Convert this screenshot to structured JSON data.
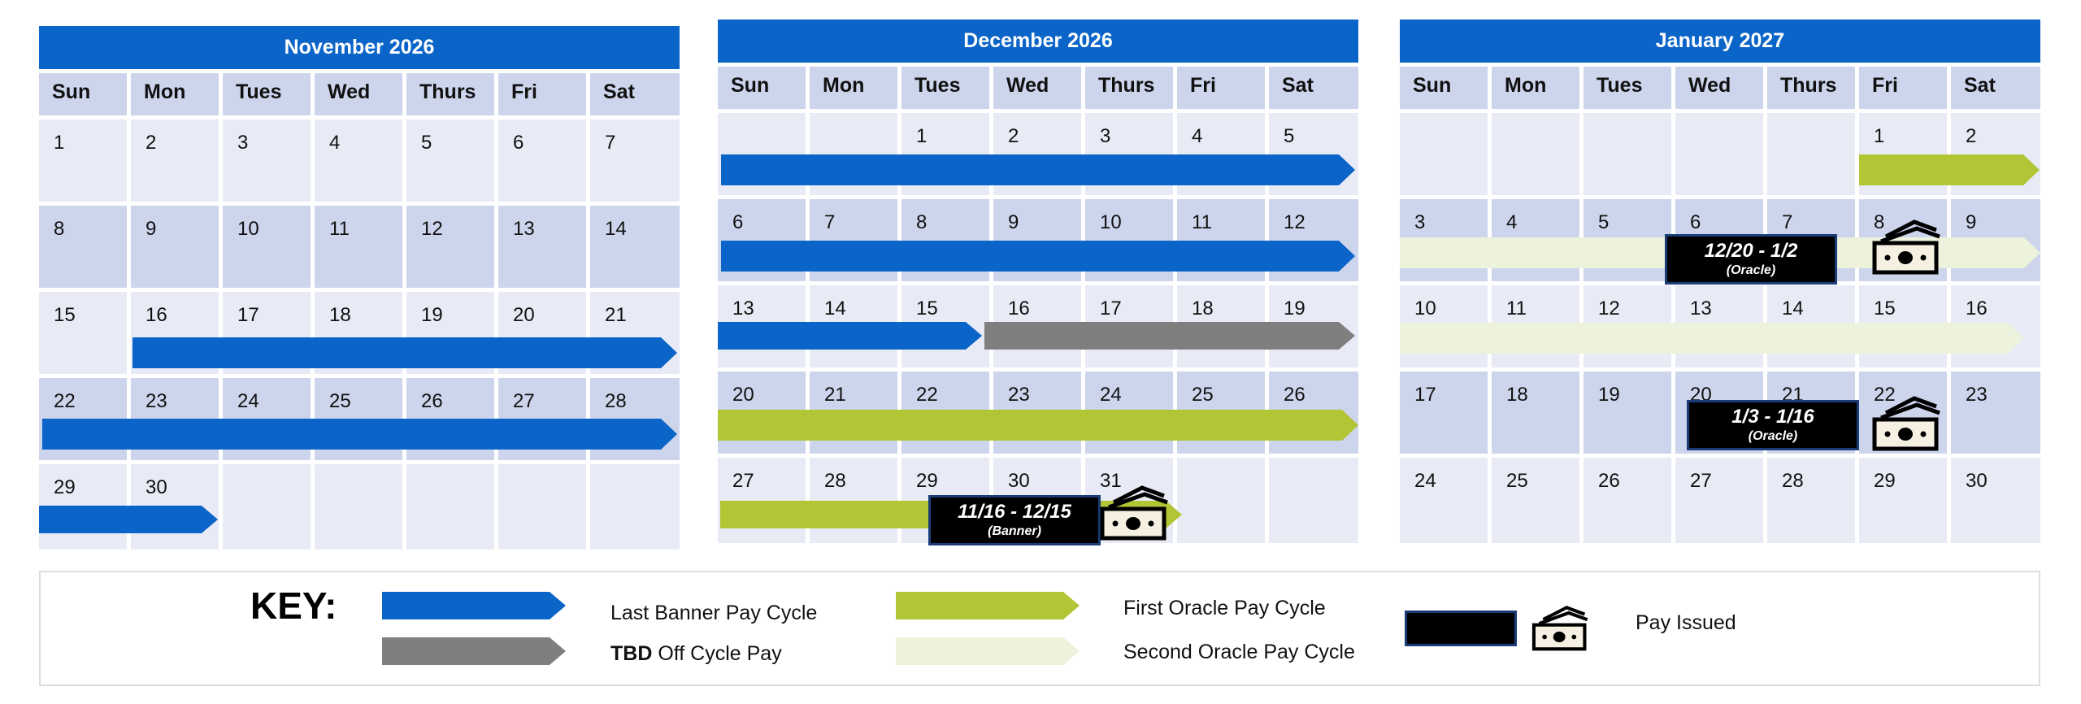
{
  "calendars": [
    {
      "title": "November 2026",
      "days_of_week": [
        "Sun",
        "Mon",
        "Tues",
        "Wed",
        "Thurs",
        "Fri",
        "Sat"
      ],
      "weeks": [
        [
          "1",
          "2",
          "3",
          "4",
          "5",
          "6",
          "7"
        ],
        [
          "8",
          "9",
          "10",
          "11",
          "12",
          "13",
          "14"
        ],
        [
          "15",
          "16",
          "17",
          "18",
          "19",
          "20",
          "21"
        ],
        [
          "22",
          "23",
          "24",
          "25",
          "26",
          "27",
          "28"
        ],
        [
          "29",
          "30",
          "",
          "",
          "",
          "",
          ""
        ]
      ]
    },
    {
      "title": "December 2026",
      "days_of_week": [
        "Sun",
        "Mon",
        "Tues",
        "Wed",
        "Thurs",
        "Fri",
        "Sat"
      ],
      "weeks": [
        [
          "",
          "",
          "1",
          "2",
          "3",
          "4",
          "5"
        ],
        [
          "6",
          "7",
          "8",
          "9",
          "10",
          "11",
          "12"
        ],
        [
          "13",
          "14",
          "15",
          "16",
          "17",
          "18",
          "19"
        ],
        [
          "20",
          "21",
          "22",
          "23",
          "24",
          "25",
          "26"
        ],
        [
          "27",
          "28",
          "29",
          "30",
          "31",
          "",
          ""
        ]
      ]
    },
    {
      "title": "January 2027",
      "days_of_week": [
        "Sun",
        "Mon",
        "Tues",
        "Wed",
        "Thurs",
        "Fri",
        "Sat"
      ],
      "weeks": [
        [
          "",
          "",
          "",
          "",
          "",
          "1",
          "2"
        ],
        [
          "3",
          "4",
          "5",
          "6",
          "7",
          "8",
          "9"
        ],
        [
          "10",
          "11",
          "12",
          "13",
          "14",
          "15",
          "16"
        ],
        [
          "17",
          "18",
          "19",
          "20",
          "21",
          "22",
          "23"
        ],
        [
          "24",
          "25",
          "26",
          "27",
          "28",
          "29",
          "30"
        ]
      ]
    }
  ],
  "pay_periods": [
    {
      "range": "11/16 - 12/15",
      "system": "(Banner)"
    },
    {
      "range": "12/20 - 1/2",
      "system": "(Oracle)"
    },
    {
      "range": "1/3 - 1/16",
      "system": "(Oracle)"
    }
  ],
  "key": {
    "title": "KEY:",
    "last_banner": "Last Banner Pay Cycle",
    "tbd_bold": "TBD",
    "tbd_rest": " Off Cycle Pay",
    "first_oracle": "First Oracle Pay Cycle",
    "second_oracle": "Second Oracle Pay Cycle",
    "pay_issued": "Pay Issued"
  },
  "colors": {
    "banner_blue": "#0b64c8",
    "tbd_gray": "#7f7f7f",
    "first_oracle_green": "#b2c535",
    "second_oracle_pale": "#edf2dc",
    "header_blue": "#0b64c8"
  },
  "icons": [
    "money-icon"
  ]
}
